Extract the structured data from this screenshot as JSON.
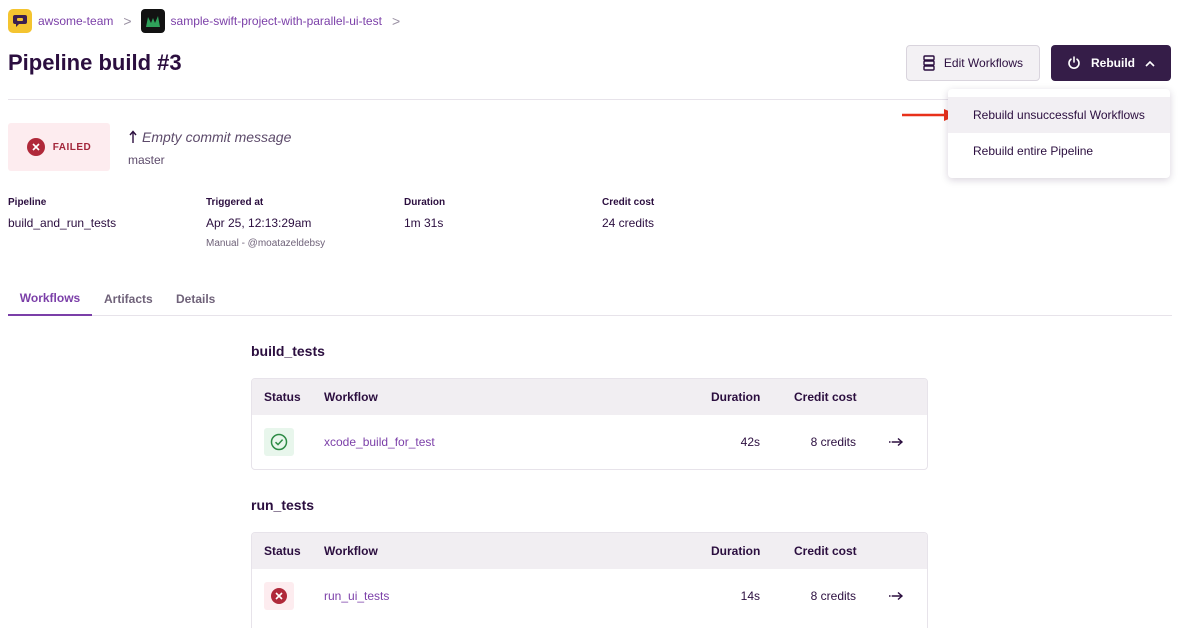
{
  "breadcrumb": {
    "team": "awsome-team",
    "separator": ">",
    "project": "sample-swift-project-with-parallel-ui-test"
  },
  "page_title": "Pipeline build #3",
  "header_buttons": {
    "edit_workflows": "Edit Workflows",
    "rebuild": "Rebuild"
  },
  "rebuild_menu": {
    "items": [
      {
        "label": "Rebuild unsuccessful Workflows",
        "highlighted": true
      },
      {
        "label": "Rebuild entire Pipeline",
        "highlighted": false
      }
    ]
  },
  "status": {
    "label": "FAILED",
    "commit_message": "Empty commit message",
    "branch": "master"
  },
  "meta": {
    "pipeline": {
      "label": "Pipeline",
      "value": "build_and_run_tests"
    },
    "triggered": {
      "label": "Triggered at",
      "value": "Apr 25, 12:13:29am",
      "sub": "Manual - @moatazeldebsy"
    },
    "duration": {
      "label": "Duration",
      "value": "1m 31s"
    },
    "credit": {
      "label": "Credit cost",
      "value": "24 credits"
    }
  },
  "tabs": [
    {
      "label": "Workflows",
      "active": true
    },
    {
      "label": "Artifacts",
      "active": false
    },
    {
      "label": "Details",
      "active": false
    }
  ],
  "table_headers": {
    "status": "Status",
    "workflow": "Workflow",
    "duration": "Duration",
    "credit": "Credit cost"
  },
  "stages": [
    {
      "name": "build_tests",
      "rows": [
        {
          "status": "success",
          "status_icon": "check-circle-icon",
          "workflow": "xcode_build_for_test",
          "duration": "42s",
          "credit": "8 credits"
        }
      ]
    },
    {
      "name": "run_tests",
      "rows": [
        {
          "status": "failed",
          "status_icon": "x-circle-icon",
          "workflow": "run_ui_tests",
          "duration": "14s",
          "credit": "8 credits"
        }
      ]
    }
  ],
  "colors": {
    "brand_purple": "#351d48",
    "link_purple": "#7b3fa8",
    "failed_red": "#b0293a",
    "success_green": "#2e8b46",
    "annotation_red": "#e8311a"
  }
}
